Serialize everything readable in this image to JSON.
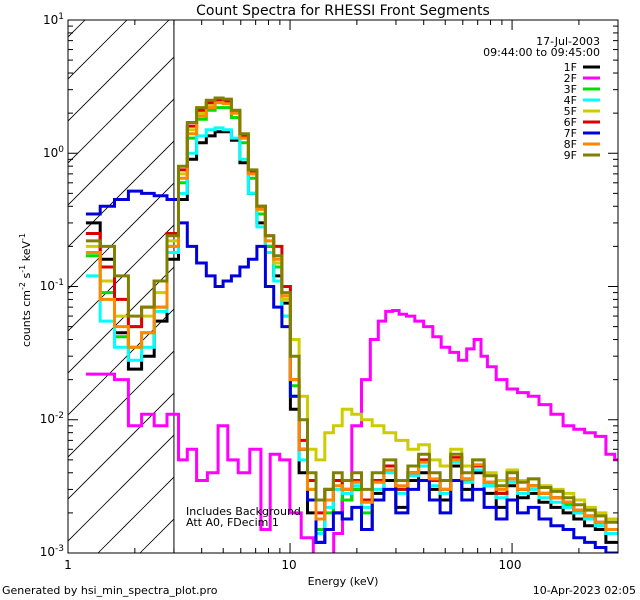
{
  "chart_data": {
    "type": "line",
    "title": "Count Spectra for RHESSI Front Segments",
    "xlabel": "Energy (keV)",
    "ylabel": "counts cm-2 s-1 keV-1",
    "xscale": "log",
    "yscale": "log",
    "xlim": [
      1,
      300
    ],
    "ylim": [
      0.001,
      10
    ],
    "x_tick_labels": [
      "1",
      "10",
      "100"
    ],
    "y_tick_labels": [
      "10-3",
      "10-2",
      "10-1",
      "100",
      "101"
    ],
    "date": "17-Jul-2003",
    "time_range": "09:44:00 to 09:45:00",
    "annotation": [
      "Includes Background",
      "Att A0, FDecim 1"
    ],
    "attenuated_region_keV": [
      1,
      3
    ],
    "footer_left": "Generated by hsi_min_spectra_plot.pro",
    "footer_right": "10-Apr-2023 02:05",
    "series": [
      {
        "name": "1F",
        "color": "#000000",
        "x": [
          1.3,
          1.5,
          1.75,
          2,
          2.3,
          2.6,
          3,
          3.3,
          3.6,
          4,
          4.4,
          4.8,
          5.2,
          5.7,
          6.2,
          6.8,
          7.4,
          8.1,
          8.8,
          9.6,
          10.5,
          11.5,
          12.5,
          13.7,
          15,
          16.4,
          18,
          20,
          22,
          25,
          28,
          32,
          36,
          40,
          45,
          50,
          56,
          63,
          70,
          80,
          90,
          100,
          112,
          125,
          140,
          160,
          180,
          200,
          225,
          250,
          280
        ],
        "y": [
          0.3,
          0.16,
          0.045,
          0.024,
          0.03,
          0.055,
          0.16,
          0.45,
          0.9,
          1.2,
          1.35,
          1.45,
          1.45,
          1.25,
          0.85,
          0.5,
          0.3,
          0.2,
          0.12,
          0.075,
          0.012,
          0.004,
          0.002,
          0.0012,
          0.003,
          0.002,
          0.0025,
          0.003,
          0.0015,
          0.0028,
          0.0035,
          0.0022,
          0.0035,
          0.004,
          0.003,
          0.0025,
          0.0045,
          0.003,
          0.004,
          0.0028,
          0.0022,
          0.0032,
          0.0026,
          0.0028,
          0.0024,
          0.0022,
          0.002,
          0.0018,
          0.0016,
          0.0015,
          0.0012
        ]
      },
      {
        "name": "2F",
        "color": "#ff00ff",
        "x": [
          1.3,
          1.5,
          1.75,
          2,
          2.3,
          2.6,
          3,
          3.3,
          3.6,
          4,
          4.5,
          5,
          5.5,
          6.2,
          7,
          7.8,
          8.5,
          9.5,
          10.5,
          12,
          13.5,
          15,
          16.5,
          18,
          20,
          22,
          24,
          26,
          28,
          30,
          32,
          35,
          38,
          42,
          46,
          50,
          55,
          60,
          65,
          70,
          75,
          80,
          90,
          100,
          112,
          125,
          140,
          160,
          180,
          200,
          225,
          250,
          280,
          300
        ],
        "y": [
          0.022,
          0.022,
          0.02,
          0.009,
          0.011,
          0.009,
          0.011,
          0.005,
          0.006,
          0.0035,
          0.004,
          0.009,
          0.005,
          0.004,
          0.006,
          0.0015,
          0.0055,
          0.005,
          0.002,
          0.0013,
          0.0008,
          0.0009,
          0.0014,
          0.003,
          0.009,
          0.02,
          0.04,
          0.055,
          0.065,
          0.066,
          0.062,
          0.06,
          0.055,
          0.05,
          0.042,
          0.035,
          0.032,
          0.028,
          0.034,
          0.04,
          0.03,
          0.025,
          0.02,
          0.017,
          0.016,
          0.015,
          0.013,
          0.011,
          0.009,
          0.0085,
          0.008,
          0.0075,
          0.0055,
          0.005
        ]
      },
      {
        "name": "3F",
        "color": "#00dd00",
        "x": [
          1.3,
          1.5,
          1.75,
          2,
          2.3,
          2.6,
          3,
          3.3,
          3.6,
          4,
          4.4,
          4.8,
          5.2,
          5.7,
          6.2,
          6.8,
          7.4,
          8.1,
          8.8,
          9.6,
          10.5,
          11.5,
          12.5,
          13.7,
          15,
          16.4,
          18,
          20,
          22,
          25,
          28,
          32,
          36,
          40,
          45,
          50,
          56,
          63,
          70,
          80,
          90,
          100,
          112,
          125,
          140,
          160,
          180,
          200,
          225,
          250,
          280
        ],
        "y": [
          0.17,
          0.09,
          0.042,
          0.035,
          0.045,
          0.07,
          0.2,
          0.6,
          1.3,
          1.8,
          2.1,
          2.2,
          2.2,
          1.85,
          1.2,
          0.65,
          0.35,
          0.2,
          0.14,
          0.06,
          0.018,
          0.006,
          0.003,
          0.0015,
          0.002,
          0.0035,
          0.0025,
          0.003,
          0.002,
          0.0035,
          0.0042,
          0.003,
          0.004,
          0.0045,
          0.0035,
          0.003,
          0.005,
          0.0035,
          0.0045,
          0.0032,
          0.0028,
          0.0036,
          0.003,
          0.0032,
          0.0028,
          0.0026,
          0.0023,
          0.002,
          0.0018,
          0.0016,
          0.0014
        ]
      },
      {
        "name": "4F",
        "color": "#00ffff",
        "x": [
          1.3,
          1.5,
          1.75,
          2,
          2.3,
          2.6,
          3,
          3.3,
          3.6,
          4,
          4.4,
          4.8,
          5.2,
          5.7,
          6.2,
          6.8,
          7.4,
          8.1,
          8.8,
          9.6,
          10.5,
          11.5,
          12.5,
          13.7,
          15,
          16.4,
          18,
          20,
          22,
          25,
          28,
          32,
          36,
          40,
          45,
          50,
          56,
          63,
          70,
          80,
          90,
          100,
          112,
          125,
          140,
          160,
          180,
          200,
          225,
          250,
          280
        ],
        "y": [
          0.12,
          0.055,
          0.035,
          0.028,
          0.035,
          0.065,
          0.18,
          0.5,
          1.0,
          1.35,
          1.5,
          1.55,
          1.5,
          1.3,
          0.9,
          0.5,
          0.28,
          0.18,
          0.11,
          0.06,
          0.015,
          0.005,
          0.0025,
          0.0014,
          0.0022,
          0.003,
          0.0028,
          0.0032,
          0.0022,
          0.003,
          0.004,
          0.0028,
          0.0038,
          0.0045,
          0.0032,
          0.0028,
          0.0048,
          0.0034,
          0.0042,
          0.0032,
          0.0026,
          0.0034,
          0.0028,
          0.003,
          0.0026,
          0.0024,
          0.0022,
          0.002,
          0.0018,
          0.0016,
          0.0014
        ]
      },
      {
        "name": "5F",
        "color": "#cccc00",
        "x": [
          1.3,
          1.5,
          1.75,
          2,
          2.3,
          2.6,
          3,
          3.3,
          3.6,
          4,
          4.4,
          4.8,
          5.2,
          5.7,
          6.2,
          6.8,
          7.4,
          8.1,
          8.8,
          9.6,
          10.5,
          11.5,
          12.5,
          13.7,
          15,
          16.4,
          18,
          20,
          22,
          25,
          28,
          32,
          36,
          40,
          45,
          50,
          56,
          63,
          70,
          80,
          90,
          100,
          112,
          125,
          140,
          160,
          180,
          200,
          225,
          250,
          280
        ],
        "y": [
          0.2,
          0.11,
          0.06,
          0.05,
          0.06,
          0.09,
          0.22,
          0.7,
          1.5,
          2.0,
          2.3,
          2.45,
          2.4,
          2.0,
          1.3,
          0.7,
          0.38,
          0.22,
          0.15,
          0.08,
          0.04,
          0.015,
          0.006,
          0.005,
          0.008,
          0.009,
          0.012,
          0.011,
          0.01,
          0.009,
          0.008,
          0.007,
          0.006,
          0.0065,
          0.005,
          0.0045,
          0.006,
          0.0045,
          0.005,
          0.004,
          0.0035,
          0.0042,
          0.0035,
          0.0036,
          0.0032,
          0.003,
          0.0028,
          0.0025,
          0.0022,
          0.002,
          0.0018
        ]
      },
      {
        "name": "6F",
        "color": "#dd0000",
        "x": [
          1.3,
          1.5,
          1.75,
          2,
          2.3,
          2.6,
          3,
          3.3,
          3.6,
          4,
          4.4,
          4.8,
          5.2,
          5.7,
          6.2,
          6.8,
          7.4,
          8.1,
          8.8,
          9.6,
          10.5,
          11.5,
          12.5,
          13.7,
          15,
          16.4,
          18,
          20,
          22,
          25,
          28,
          32,
          36,
          40,
          45,
          50,
          56,
          63,
          70,
          80,
          90,
          100,
          112,
          125,
          140,
          160,
          180,
          200,
          225,
          250,
          280
        ],
        "y": [
          0.25,
          0.14,
          0.08,
          0.05,
          0.07,
          0.11,
          0.25,
          0.75,
          1.6,
          2.1,
          2.4,
          2.5,
          2.45,
          2.05,
          1.35,
          0.72,
          0.4,
          0.24,
          0.2,
          0.1,
          0.02,
          0.007,
          0.0035,
          0.002,
          0.0025,
          0.0035,
          0.003,
          0.0035,
          0.0025,
          0.0035,
          0.0045,
          0.003,
          0.004,
          0.005,
          0.0035,
          0.003,
          0.0052,
          0.0036,
          0.0045,
          0.0034,
          0.0028,
          0.0036,
          0.003,
          0.0032,
          0.0028,
          0.0026,
          0.0024,
          0.0021,
          0.0019,
          0.0017,
          0.0015
        ]
      },
      {
        "name": "7F",
        "color": "#0000dd",
        "x": [
          1.3,
          1.5,
          1.75,
          2,
          2.3,
          2.6,
          3,
          3.3,
          3.6,
          4,
          4.4,
          4.8,
          5.2,
          5.7,
          6.2,
          6.8,
          7.4,
          8.1,
          8.8,
          9.6,
          10.5,
          11.5,
          12.5,
          13.7,
          15,
          16.4,
          18,
          20,
          22,
          25,
          28,
          32,
          36,
          40,
          45,
          50,
          56,
          63,
          70,
          80,
          90,
          100,
          112,
          125,
          140,
          160,
          180,
          200,
          225,
          250,
          280
        ],
        "y": [
          0.35,
          0.4,
          0.45,
          0.52,
          0.5,
          0.48,
          0.45,
          0.3,
          0.2,
          0.15,
          0.12,
          0.1,
          0.11,
          0.12,
          0.14,
          0.16,
          0.2,
          0.1,
          0.07,
          0.05,
          0.015,
          0.006,
          0.0025,
          0.0012,
          0.0015,
          0.002,
          0.0018,
          0.0022,
          0.0015,
          0.0025,
          0.003,
          0.002,
          0.003,
          0.0035,
          0.0025,
          0.002,
          0.0035,
          0.0025,
          0.003,
          0.0022,
          0.0018,
          0.0025,
          0.002,
          0.0022,
          0.0018,
          0.0016,
          0.0015,
          0.0013,
          0.0012,
          0.0011,
          0.001
        ]
      },
      {
        "name": "8F",
        "color": "#ff8800",
        "x": [
          1.3,
          1.5,
          1.75,
          2,
          2.3,
          2.6,
          3,
          3.3,
          3.6,
          4,
          4.4,
          4.8,
          5.2,
          5.7,
          6.2,
          6.8,
          7.4,
          8.1,
          8.8,
          9.6,
          10.5,
          11.5,
          12.5,
          13.7,
          15,
          16.4,
          18,
          20,
          22,
          25,
          28,
          32,
          36,
          40,
          45,
          50,
          56,
          63,
          70,
          80,
          90,
          100,
          112,
          125,
          140,
          160,
          180,
          200,
          225,
          250,
          280
        ],
        "y": [
          0.18,
          0.08,
          0.05,
          0.035,
          0.045,
          0.07,
          0.2,
          0.65,
          1.4,
          1.9,
          2.2,
          2.4,
          2.35,
          2.0,
          1.3,
          0.7,
          0.38,
          0.22,
          0.16,
          0.085,
          0.02,
          0.006,
          0.003,
          0.0018,
          0.0025,
          0.0032,
          0.003,
          0.0034,
          0.0024,
          0.0034,
          0.0042,
          0.0032,
          0.004,
          0.0048,
          0.0036,
          0.003,
          0.005,
          0.0036,
          0.0046,
          0.0034,
          0.003,
          0.0036,
          0.003,
          0.0032,
          0.0028,
          0.0026,
          0.0024,
          0.0021,
          0.0019,
          0.0017,
          0.0015
        ]
      },
      {
        "name": "9F",
        "color": "#808000",
        "x": [
          1.3,
          1.5,
          1.75,
          2,
          2.3,
          2.6,
          3,
          3.3,
          3.6,
          4,
          4.4,
          4.8,
          5.2,
          5.7,
          6.2,
          6.8,
          7.4,
          8.1,
          8.8,
          9.6,
          10.5,
          11.5,
          12.5,
          13.7,
          15,
          16.4,
          18,
          20,
          22,
          25,
          28,
          32,
          36,
          40,
          45,
          50,
          56,
          63,
          70,
          80,
          90,
          100,
          112,
          125,
          140,
          160,
          180,
          200,
          225,
          250,
          280
        ],
        "y": [
          0.22,
          0.2,
          0.12,
          0.06,
          0.07,
          0.11,
          0.24,
          0.8,
          1.7,
          2.2,
          2.5,
          2.6,
          2.55,
          2.1,
          1.4,
          0.75,
          0.4,
          0.24,
          0.17,
          0.09,
          0.03,
          0.01,
          0.004,
          0.0025,
          0.003,
          0.004,
          0.0035,
          0.004,
          0.003,
          0.004,
          0.005,
          0.0035,
          0.0045,
          0.0055,
          0.004,
          0.0035,
          0.0055,
          0.004,
          0.005,
          0.0038,
          0.0032,
          0.004,
          0.0034,
          0.0036,
          0.0031,
          0.0029,
          0.0026,
          0.0023,
          0.0021,
          0.0019,
          0.0017
        ]
      }
    ]
  }
}
